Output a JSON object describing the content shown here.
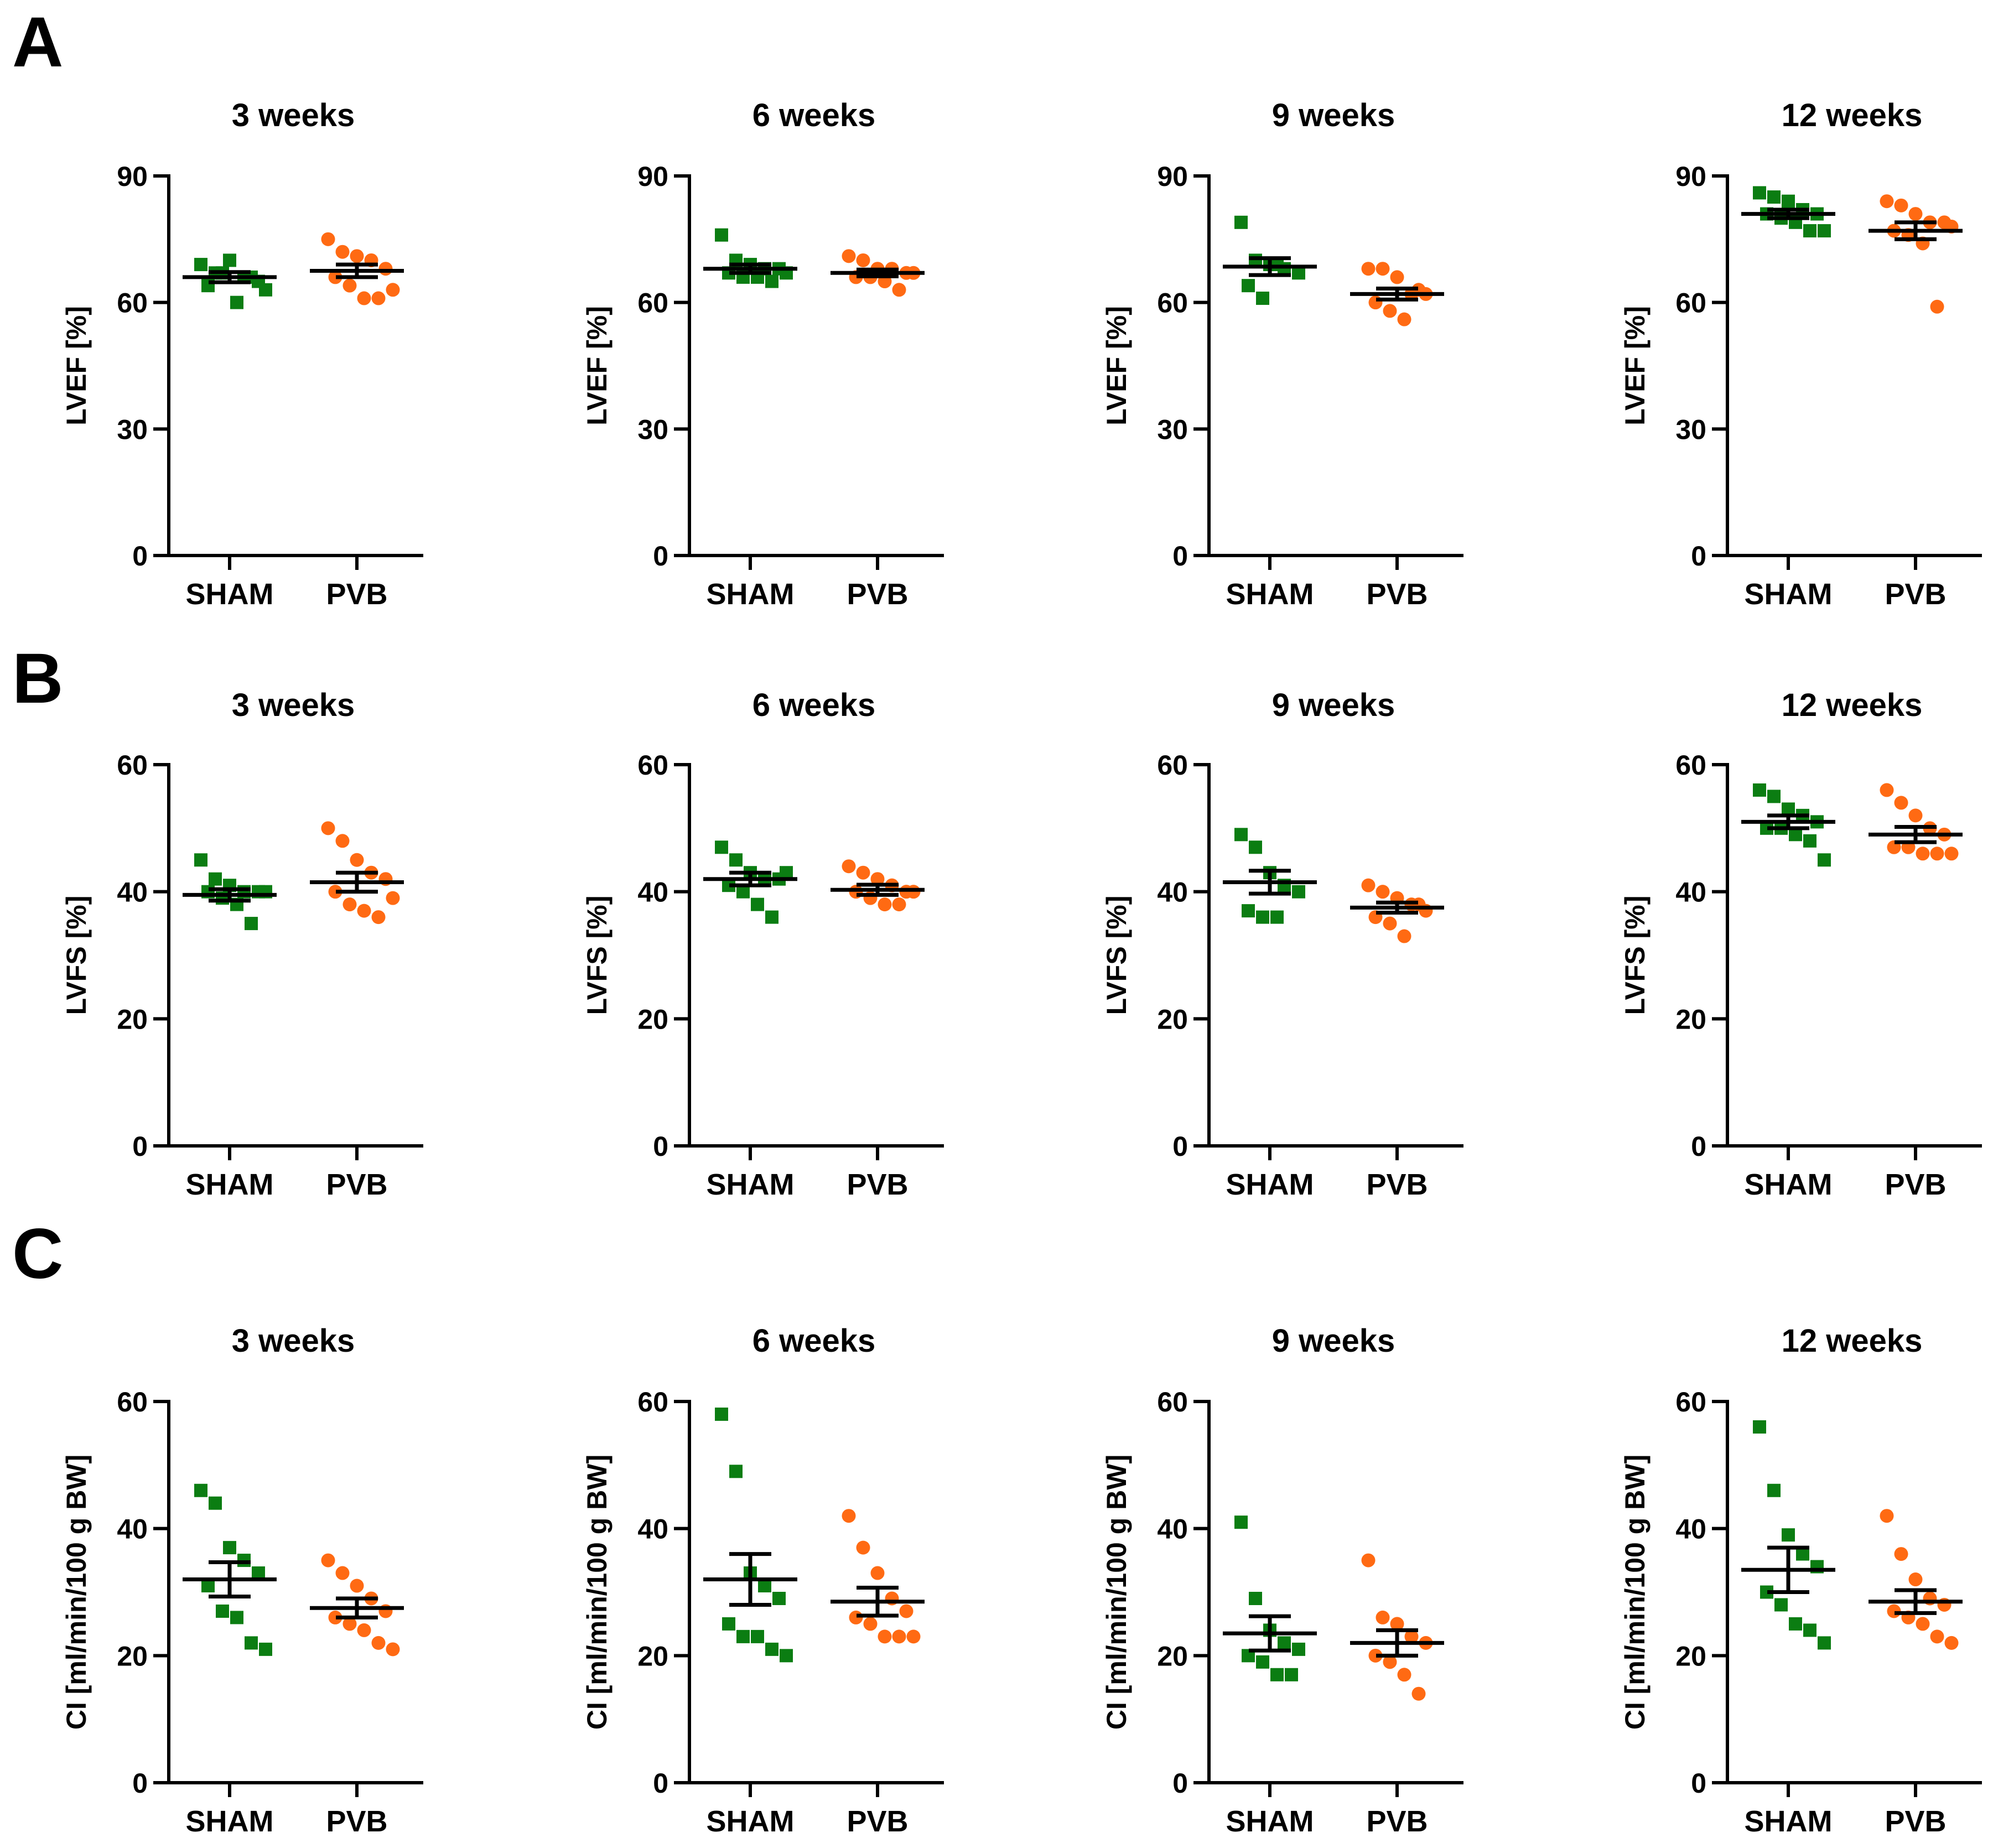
{
  "colors": {
    "sham": "#0b7d12",
    "pvb": "#ff6a13",
    "axis": "#000000"
  },
  "panels": [
    {
      "letter": "A",
      "ylabel": "LVEF [%]"
    },
    {
      "letter": "B",
      "ylabel": "LVFS [%]"
    },
    {
      "letter": "C",
      "ylabel": "CI [ml/min/100 g BW]"
    }
  ],
  "chart_data": [
    {
      "panel": 0,
      "type": "scatter",
      "title": "3 weeks",
      "ylabel": "LVEF [%]",
      "ylim": [
        0,
        90
      ],
      "yticks": [
        0,
        30,
        60,
        90
      ],
      "categories": [
        "SHAM",
        "PVB"
      ],
      "series": [
        {
          "name": "SHAM",
          "marker": "square",
          "mean": 66,
          "sem": 1.2,
          "values": [
            69,
            67,
            70,
            66,
            65,
            64,
            67,
            60,
            66,
            63
          ]
        },
        {
          "name": "PVB",
          "marker": "circle",
          "mean": 67.5,
          "sem": 1.5,
          "values": [
            75,
            72,
            71,
            70,
            68,
            66,
            64,
            61,
            61,
            63
          ]
        }
      ]
    },
    {
      "panel": 0,
      "type": "scatter",
      "title": "6 weeks",
      "ylabel": "LVEF [%]",
      "ylim": [
        0,
        90
      ],
      "yticks": [
        0,
        30,
        60,
        90
      ],
      "categories": [
        "SHAM",
        "PVB"
      ],
      "series": [
        {
          "name": "SHAM",
          "marker": "square",
          "mean": 68,
          "sem": 1.0,
          "values": [
            76,
            70,
            69,
            68,
            68,
            67,
            66,
            66,
            65,
            67
          ]
        },
        {
          "name": "PVB",
          "marker": "circle",
          "mean": 67,
          "sem": 0.8,
          "values": [
            71,
            70,
            68,
            68,
            67,
            66,
            66,
            65,
            63,
            67
          ]
        }
      ]
    },
    {
      "panel": 0,
      "type": "scatter",
      "title": "9 weeks",
      "ylabel": "LVEF [%]",
      "ylim": [
        0,
        90
      ],
      "yticks": [
        0,
        30,
        60,
        90
      ],
      "categories": [
        "SHAM",
        "PVB"
      ],
      "series": [
        {
          "name": "SHAM",
          "marker": "square",
          "mean": 68.5,
          "sem": 2.0,
          "values": [
            79,
            70,
            69,
            68,
            67,
            64,
            61,
            69
          ]
        },
        {
          "name": "PVB",
          "marker": "circle",
          "mean": 62,
          "sem": 1.3,
          "values": [
            68,
            68,
            66,
            62,
            62,
            60,
            58,
            56,
            63
          ]
        }
      ]
    },
    {
      "panel": 0,
      "type": "scatter",
      "title": "12 weeks",
      "ylabel": "LVEF [%]",
      "ylim": [
        0,
        90
      ],
      "yticks": [
        0,
        30,
        60,
        90
      ],
      "categories": [
        "SHAM",
        "PVB"
      ],
      "series": [
        {
          "name": "SHAM",
          "marker": "square",
          "mean": 81,
          "sem": 1.0,
          "values": [
            86,
            85,
            84,
            82,
            81,
            81,
            80,
            79,
            77,
            77
          ]
        },
        {
          "name": "PVB",
          "marker": "circle",
          "mean": 77,
          "sem": 2.0,
          "values": [
            84,
            83,
            81,
            79,
            79,
            77,
            76,
            74,
            59,
            78
          ]
        }
      ]
    },
    {
      "panel": 1,
      "type": "scatter",
      "title": "3 weeks",
      "ylabel": "LVFS [%]",
      "ylim": [
        0,
        60
      ],
      "yticks": [
        0,
        20,
        40,
        60
      ],
      "categories": [
        "SHAM",
        "PVB"
      ],
      "series": [
        {
          "name": "SHAM",
          "marker": "square",
          "mean": 39.5,
          "sem": 0.9,
          "values": [
            45,
            42,
            41,
            40,
            40,
            40,
            39,
            38,
            35,
            40
          ]
        },
        {
          "name": "PVB",
          "marker": "circle",
          "mean": 41.5,
          "sem": 1.5,
          "values": [
            50,
            48,
            45,
            43,
            42,
            40,
            38,
            37,
            36,
            39
          ]
        }
      ]
    },
    {
      "panel": 1,
      "type": "scatter",
      "title": "6 weeks",
      "ylabel": "LVFS [%]",
      "ylim": [
        0,
        60
      ],
      "yticks": [
        0,
        20,
        40,
        60
      ],
      "categories": [
        "SHAM",
        "PVB"
      ],
      "series": [
        {
          "name": "SHAM",
          "marker": "square",
          "mean": 42,
          "sem": 1.0,
          "values": [
            47,
            45,
            43,
            42,
            42,
            41,
            40,
            38,
            36,
            43
          ]
        },
        {
          "name": "PVB",
          "marker": "circle",
          "mean": 40.3,
          "sem": 0.8,
          "values": [
            44,
            43,
            42,
            41,
            40,
            40,
            39,
            38,
            38,
            40
          ]
        }
      ]
    },
    {
      "panel": 1,
      "type": "scatter",
      "title": "9 weeks",
      "ylabel": "LVFS [%]",
      "ylim": [
        0,
        60
      ],
      "yticks": [
        0,
        20,
        40,
        60
      ],
      "categories": [
        "SHAM",
        "PVB"
      ],
      "series": [
        {
          "name": "SHAM",
          "marker": "square",
          "mean": 41.5,
          "sem": 1.8,
          "values": [
            49,
            47,
            43,
            41,
            40,
            37,
            36,
            36
          ]
        },
        {
          "name": "PVB",
          "marker": "circle",
          "mean": 37.5,
          "sem": 0.8,
          "values": [
            41,
            40,
            39,
            38,
            37,
            36,
            35,
            33,
            38
          ]
        }
      ]
    },
    {
      "panel": 1,
      "type": "scatter",
      "title": "12 weeks",
      "ylabel": "LVFS [%]",
      "ylim": [
        0,
        60
      ],
      "yticks": [
        0,
        20,
        40,
        60
      ],
      "categories": [
        "SHAM",
        "PVB"
      ],
      "series": [
        {
          "name": "SHAM",
          "marker": "square",
          "mean": 51,
          "sem": 1.0,
          "values": [
            56,
            55,
            53,
            52,
            51,
            50,
            50,
            49,
            48,
            45
          ]
        },
        {
          "name": "PVB",
          "marker": "circle",
          "mean": 49,
          "sem": 1.2,
          "values": [
            56,
            54,
            52,
            50,
            49,
            47,
            47,
            46,
            46,
            46
          ]
        }
      ]
    },
    {
      "panel": 2,
      "type": "scatter",
      "title": "3 weeks",
      "ylabel": "CI [ml/min/100 g BW]",
      "ylim": [
        0,
        60
      ],
      "yticks": [
        0,
        20,
        40,
        60
      ],
      "categories": [
        "SHAM",
        "PVB"
      ],
      "series": [
        {
          "name": "SHAM",
          "marker": "square",
          "mean": 32,
          "sem": 2.7,
          "values": [
            46,
            44,
            37,
            35,
            33,
            31,
            27,
            26,
            22,
            21
          ]
        },
        {
          "name": "PVB",
          "marker": "circle",
          "mean": 27.5,
          "sem": 1.5,
          "values": [
            35,
            33,
            31,
            29,
            27,
            26,
            25,
            24,
            22,
            21
          ]
        }
      ]
    },
    {
      "panel": 2,
      "type": "scatter",
      "title": "6 weeks",
      "ylabel": "CI [ml/min/100 g BW]",
      "ylim": [
        0,
        60
      ],
      "yticks": [
        0,
        20,
        40,
        60
      ],
      "categories": [
        "SHAM",
        "PVB"
      ],
      "series": [
        {
          "name": "SHAM",
          "marker": "square",
          "mean": 32,
          "sem": 4.0,
          "values": [
            58,
            49,
            33,
            31,
            29,
            25,
            23,
            23,
            21,
            20
          ]
        },
        {
          "name": "PVB",
          "marker": "circle",
          "mean": 28.5,
          "sem": 2.2,
          "values": [
            42,
            37,
            33,
            29,
            27,
            26,
            25,
            23,
            23,
            23
          ]
        }
      ]
    },
    {
      "panel": 2,
      "type": "scatter",
      "title": "9 weeks",
      "ylabel": "CI [ml/min/100 g BW]",
      "ylim": [
        0,
        60
      ],
      "yticks": [
        0,
        20,
        40,
        60
      ],
      "categories": [
        "SHAM",
        "PVB"
      ],
      "series": [
        {
          "name": "SHAM",
          "marker": "square",
          "mean": 23.5,
          "sem": 2.7,
          "values": [
            41,
            29,
            24,
            22,
            21,
            20,
            19,
            17,
            17
          ]
        },
        {
          "name": "PVB",
          "marker": "circle",
          "mean": 22,
          "sem": 2.0,
          "values": [
            35,
            26,
            25,
            23,
            22,
            20,
            19,
            17,
            14
          ]
        }
      ]
    },
    {
      "panel": 2,
      "type": "scatter",
      "title": "12 weeks",
      "ylabel": "CI [ml/min/100 g BW]",
      "ylim": [
        0,
        60
      ],
      "yticks": [
        0,
        20,
        40,
        60
      ],
      "categories": [
        "SHAM",
        "PVB"
      ],
      "series": [
        {
          "name": "SHAM",
          "marker": "square",
          "mean": 33.5,
          "sem": 3.5,
          "values": [
            56,
            46,
            39,
            36,
            34,
            30,
            28,
            25,
            24,
            22
          ]
        },
        {
          "name": "PVB",
          "marker": "circle",
          "mean": 28.5,
          "sem": 1.8,
          "values": [
            42,
            36,
            32,
            29,
            28,
            27,
            26,
            25,
            23,
            22
          ]
        }
      ]
    }
  ]
}
